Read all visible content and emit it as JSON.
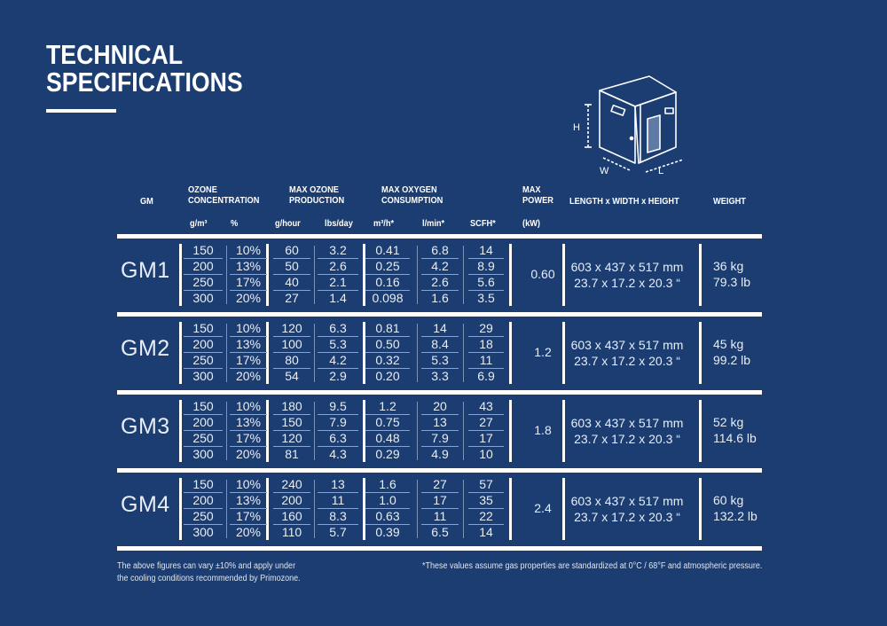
{
  "title": {
    "line1": "TECHNICAL",
    "line2": "SPECIFICATIONS"
  },
  "diagram": {
    "label_h": "H",
    "label_w": "W",
    "label_l": "L"
  },
  "headers": {
    "gm": "GM",
    "ozone_concentration": {
      "line1": "OZONE",
      "line2": "CONCENTRATION",
      "unit1": "g/m³",
      "unit2": "%"
    },
    "max_ozone_production": {
      "line1": "MAX OZONE",
      "line2": "PRODUCTION",
      "unit1": "g/hour",
      "unit2": "lbs/day"
    },
    "max_oxygen_consumption": {
      "line1": "MAX OXYGEN",
      "line2": "CONSUMPTION",
      "unit1": "m³/h*",
      "unit2": "l/min*",
      "unit3": "SCFH*"
    },
    "max_power": {
      "line1": "MAX",
      "line2": "POWER",
      "unit": "(kW)"
    },
    "dimensions": "LENGTH x WIDTH x HEIGHT",
    "weight": "WEIGHT"
  },
  "models": [
    {
      "name": "GM1",
      "gm3": [
        "150",
        "200",
        "250",
        "300"
      ],
      "pct": [
        "10%",
        "13%",
        "17%",
        "20%"
      ],
      "ghour": [
        "60",
        "50",
        "40",
        "27"
      ],
      "lbsday": [
        "3.2",
        "2.6",
        "2.1",
        "1.4"
      ],
      "m3h": [
        "0.41",
        "0.25",
        "0.16",
        "0.098"
      ],
      "lmin": [
        "6.8",
        "4.2",
        "2.6",
        "1.6"
      ],
      "scfh": [
        "14",
        "8.9",
        "5.6",
        "3.5"
      ],
      "power": "0.60",
      "dims_mm": "603 x 437 x 517 mm",
      "dims_in": "23.7 x 17.2 x 20.3 “",
      "weight_kg": "36 kg",
      "weight_lb": "79.3 lb"
    },
    {
      "name": "GM2",
      "gm3": [
        "150",
        "200",
        "250",
        "300"
      ],
      "pct": [
        "10%",
        "13%",
        "17%",
        "20%"
      ],
      "ghour": [
        "120",
        "100",
        "80",
        "54"
      ],
      "lbsday": [
        "6.3",
        "5.3",
        "4.2",
        "2.9"
      ],
      "m3h": [
        "0.81",
        "0.50",
        "0.32",
        "0.20"
      ],
      "lmin": [
        "14",
        "8.4",
        "5.3",
        "3.3"
      ],
      "scfh": [
        "29",
        "18",
        "11",
        "6.9"
      ],
      "power": "1.2",
      "dims_mm": "603 x 437 x 517 mm",
      "dims_in": "23.7 x 17.2 x 20.3 “",
      "weight_kg": "45 kg",
      "weight_lb": "99.2 lb"
    },
    {
      "name": "GM3",
      "gm3": [
        "150",
        "200",
        "250",
        "300"
      ],
      "pct": [
        "10%",
        "13%",
        "17%",
        "20%"
      ],
      "ghour": [
        "180",
        "150",
        "120",
        "81"
      ],
      "lbsday": [
        "9.5",
        "7.9",
        "6.3",
        "4.3"
      ],
      "m3h": [
        "1.2",
        "0.75",
        "0.48",
        "0.29"
      ],
      "lmin": [
        "20",
        "13",
        "7.9",
        "4.9"
      ],
      "scfh": [
        "43",
        "27",
        "17",
        "10"
      ],
      "power": "1.8",
      "dims_mm": "603 x 437 x 517 mm",
      "dims_in": "23.7 x 17.2 x 20.3 “",
      "weight_kg": "52 kg",
      "weight_lb": "114.6 lb"
    },
    {
      "name": "GM4",
      "gm3": [
        "150",
        "200",
        "250",
        "300"
      ],
      "pct": [
        "10%",
        "13%",
        "17%",
        "20%"
      ],
      "ghour": [
        "240",
        "200",
        "160",
        "110"
      ],
      "lbsday": [
        "13",
        "11",
        "8.3",
        "5.7"
      ],
      "m3h": [
        "1.6",
        "1.0",
        "0.63",
        "0.39"
      ],
      "lmin": [
        "27",
        "17",
        "11",
        "6.5"
      ],
      "scfh": [
        "57",
        "35",
        "22",
        "14"
      ],
      "power": "2.4",
      "dims_mm": "603 x 437 x 517 mm",
      "dims_in": "23.7 x 17.2 x 20.3 “",
      "weight_kg": "60 kg",
      "weight_lb": "132.2 lb"
    }
  ],
  "footer": {
    "left_line1": "The above figures can vary ±10% and apply under",
    "left_line2": "the cooling conditions recommended by Primozone.",
    "right": "*These values assume gas properties are standardized at 0°C / 68°F and atmospheric pressure."
  },
  "colors": {
    "background": "#1b3d71",
    "foreground": "#ffffff",
    "separator": "#8da3c6"
  }
}
